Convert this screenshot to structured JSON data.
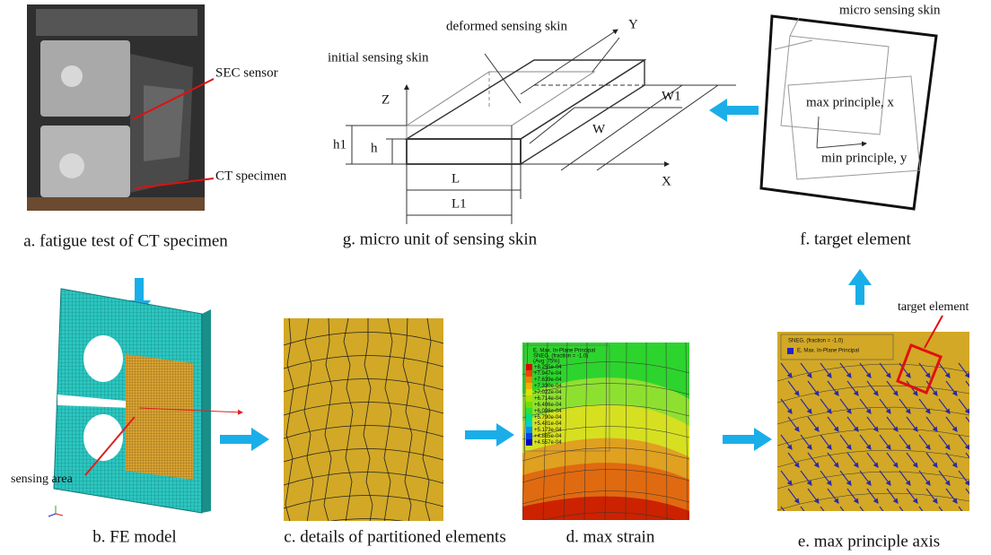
{
  "panel_a": {
    "caption": "a. fatigue test of CT specimen",
    "sec_sensor": "SEC sensor",
    "ct_specimen": "CT specimen"
  },
  "panel_b": {
    "caption": "b. FE model",
    "sensing_area": "sensing area"
  },
  "panel_c": {
    "caption": "c. details of partitioned elements"
  },
  "panel_d": {
    "caption": "d. max strain",
    "legend": {
      "title": "E, Max. In-Plane Principal",
      "subtitle": "SNEG, (fraction = -1.0)",
      "avg": "(Avg: 75%)",
      "values": [
        "+8.255e-04",
        "+7.947e-04",
        "+7.639e-04",
        "+7.330e-04",
        "+7.022e-04",
        "+6.714e-04",
        "+6.406e-04",
        "+6.098e-04",
        "+5.790e-04",
        "+5.481e-04",
        "+5.173e-04",
        "+4.865e-04",
        "+4.557e-04"
      ]
    }
  },
  "panel_e": {
    "caption": "e. max principle axis",
    "legend_title": "SNEG, (fraction = -1.0)",
    "legend_entry": "E, Max. In-Plane Principal",
    "target_element": "target element"
  },
  "panel_f": {
    "caption": "f. target element",
    "micro_sensing_skin": "micro sensing skin",
    "max_principle": "max principle, x",
    "min_principle": "min principle, y"
  },
  "panel_g": {
    "caption": "g. micro unit of sensing skin",
    "deformed": "deformed sensing skin",
    "initial": "initial sensing skin",
    "axis_x": "X",
    "axis_y": "Y",
    "axis_z": "Z",
    "h1": "h1",
    "h": "h",
    "L": "L",
    "L1": "L1",
    "W": "W",
    "W1": "W1"
  }
}
